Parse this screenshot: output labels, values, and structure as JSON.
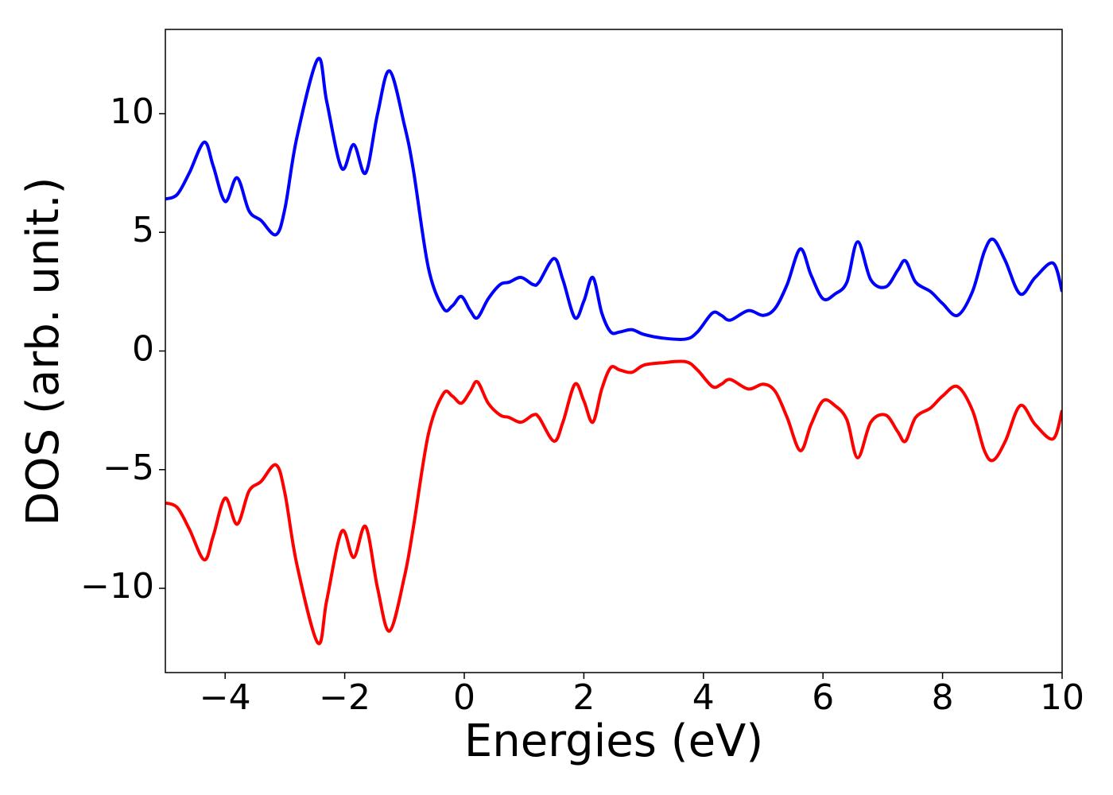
{
  "chart_data": {
    "type": "line",
    "xlabel": "Energies (eV)",
    "ylabel": "DOS (arb. unit.)",
    "x": [
      -5,
      -4.8,
      -4.6,
      -4.35,
      -4.2,
      -4.0,
      -3.8,
      -3.6,
      -3.4,
      -3.15,
      -3.0,
      -2.8,
      -2.45,
      -2.3,
      -2.05,
      -1.85,
      -1.65,
      -1.45,
      -1.25,
      -1.0,
      -0.85,
      -0.6,
      -0.35,
      -0.2,
      -0.05,
      0.1,
      0.22,
      0.4,
      0.6,
      0.75,
      0.95,
      1.15,
      1.25,
      1.5,
      1.65,
      1.85,
      2.0,
      2.15,
      2.3,
      2.45,
      2.6,
      2.8,
      3.0,
      3.3,
      3.7,
      3.9,
      4.15,
      4.3,
      4.45,
      4.75,
      5.0,
      5.2,
      5.4,
      5.62,
      5.8,
      6.0,
      6.2,
      6.4,
      6.58,
      6.8,
      7.05,
      7.25,
      7.38,
      7.55,
      7.8,
      8.0,
      8.25,
      8.5,
      8.7,
      8.85,
      9.05,
      9.3,
      9.55,
      9.85,
      10
    ],
    "series": [
      {
        "color": "#0000ff",
        "values": [
          6.4,
          6.6,
          7.5,
          8.8,
          7.8,
          6.3,
          7.3,
          5.9,
          5.5,
          4.9,
          6.0,
          9.0,
          12.3,
          10.5,
          7.7,
          8.7,
          7.5,
          10.0,
          11.8,
          9.5,
          7.6,
          3.5,
          1.8,
          1.9,
          2.3,
          1.7,
          1.4,
          2.2,
          2.8,
          2.9,
          3.1,
          2.8,
          2.9,
          3.9,
          3.0,
          1.4,
          2.1,
          3.1,
          1.6,
          0.8,
          0.8,
          0.9,
          0.7,
          0.55,
          0.5,
          0.8,
          1.6,
          1.5,
          1.3,
          1.7,
          1.5,
          1.8,
          2.8,
          4.3,
          3.2,
          2.2,
          2.4,
          2.9,
          4.6,
          3.0,
          2.7,
          3.4,
          3.8,
          2.9,
          2.5,
          2.0,
          1.5,
          2.5,
          4.2,
          4.7,
          3.8,
          2.4,
          3.1,
          3.7,
          2.5
        ]
      },
      {
        "color": "#ff0000",
        "values": [
          -6.4,
          -6.6,
          -7.5,
          -8.8,
          -7.8,
          -6.2,
          -7.3,
          -5.9,
          -5.5,
          -4.8,
          -6.0,
          -9.0,
          -12.3,
          -10.5,
          -7.6,
          -8.7,
          -7.4,
          -10.0,
          -11.8,
          -9.5,
          -7.4,
          -3.5,
          -1.8,
          -1.9,
          -2.2,
          -1.7,
          -1.3,
          -2.2,
          -2.7,
          -2.8,
          -3.0,
          -2.7,
          -2.8,
          -3.8,
          -3.0,
          -1.4,
          -2.1,
          -3.0,
          -1.6,
          -0.7,
          -0.8,
          -0.9,
          -0.6,
          -0.5,
          -0.45,
          -0.8,
          -1.5,
          -1.4,
          -1.2,
          -1.6,
          -1.4,
          -1.7,
          -2.8,
          -4.2,
          -3.1,
          -2.1,
          -2.3,
          -2.9,
          -4.5,
          -3.0,
          -2.7,
          -3.4,
          -3.8,
          -2.8,
          -2.4,
          -1.9,
          -1.5,
          -2.5,
          -4.2,
          -4.6,
          -3.8,
          -2.3,
          -3.1,
          -3.7,
          -2.5
        ]
      }
    ],
    "xlim": [
      -5,
      10
    ],
    "xticks": [
      {
        "value": -4,
        "label": "−4"
      },
      {
        "value": -2,
        "label": "−2"
      },
      0,
      2,
      4,
      6,
      8,
      10
    ],
    "ylim": [
      -13.55,
      13.55
    ],
    "yticks": [
      {
        "value": -10,
        "label": "−10"
      },
      {
        "value": -5,
        "label": "−5"
      },
      0,
      5,
      10
    ]
  }
}
